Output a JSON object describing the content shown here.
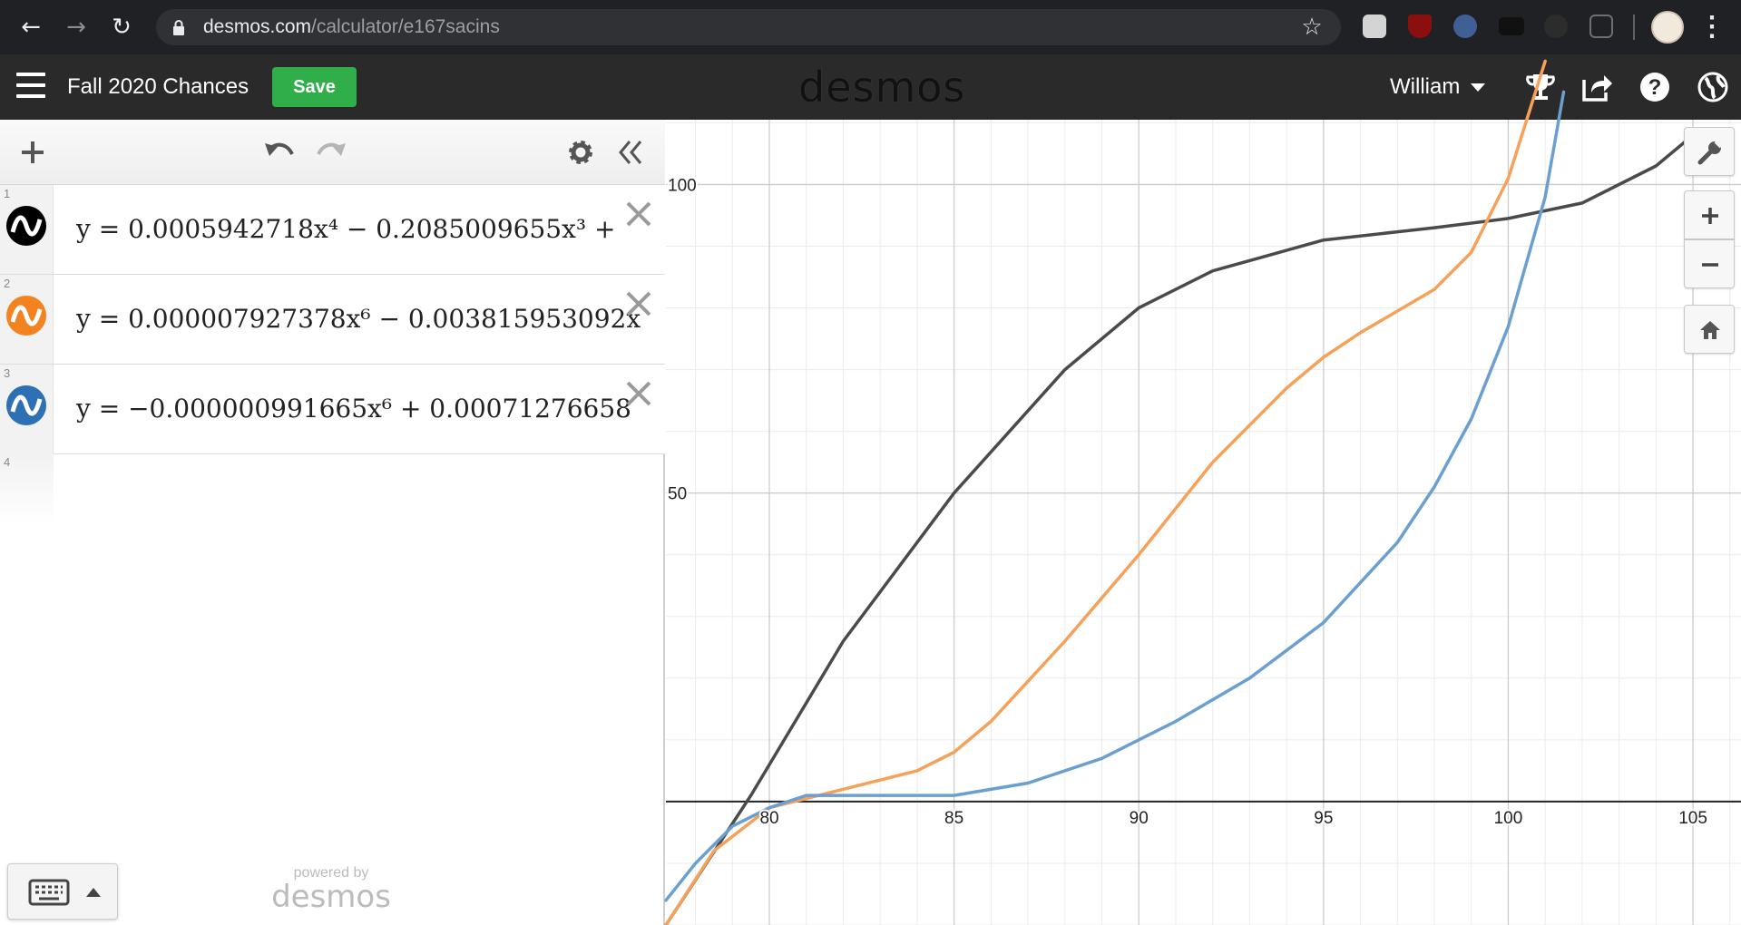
{
  "browser": {
    "url_host": "desmos.com",
    "url_path": "/calculator/e167sacins",
    "icons": [
      "back-icon",
      "forward-icon",
      "reload-icon",
      "lock-icon",
      "star-icon",
      "chrome-menu-icon"
    ]
  },
  "header": {
    "title": "Fall 2020 Chances",
    "save_label": "Save",
    "logo": "desmos",
    "user_name": "William",
    "icons": [
      "hamburger-icon",
      "trophy-icon",
      "share-icon",
      "help-icon",
      "globe-icon"
    ]
  },
  "expression_panel": {
    "toolbar_icons": [
      "add-icon",
      "undo-icon",
      "redo-icon",
      "settings-icon",
      "collapse-icon"
    ],
    "expressions": [
      {
        "index": "1",
        "color": "#000000",
        "latex": "y = 0.0005942718x⁴ − 0.2085009655x³ + "
      },
      {
        "index": "2",
        "color": "#f28320",
        "latex": "y = 0.000007927378x⁶ − 0.003815953092x"
      },
      {
        "index": "3",
        "color": "#2d70b3",
        "latex": "y = −0.000000991665x⁶ + 0.00071276658"
      }
    ],
    "empty_index": "4",
    "powered_by_label": "powered by",
    "powered_by_logo": "desmos"
  },
  "graph": {
    "x_ticks": [
      "80",
      "85",
      "90",
      "95",
      "100",
      "105"
    ],
    "y_ticks": [
      "50",
      "100"
    ],
    "x_range": [
      77.2,
      106.3
    ],
    "y_range": [
      -20.0,
      110.5
    ],
    "grid": "on",
    "controls": [
      "wrench-icon",
      "zoom-in-icon",
      "zoom-out-icon",
      "home-icon"
    ]
  },
  "chart_data": {
    "type": "line",
    "xlim": [
      77.2,
      106.3
    ],
    "ylim": [
      -20.0,
      110.5
    ],
    "x_ticks": [
      80,
      85,
      90,
      95,
      100,
      105
    ],
    "y_ticks": [
      50,
      100
    ],
    "series": [
      {
        "color": "#4a4a4a",
        "x": [
          77.2,
          79.5,
          82,
          85,
          88,
          90,
          92,
          95,
          98,
          100,
          102,
          104,
          105
        ],
        "y": [
          -20,
          1,
          26,
          50,
          70,
          80,
          86,
          91,
          93,
          94.5,
          97,
          103,
          108
        ]
      },
      {
        "color": "#f5a15a",
        "x": [
          77.2,
          78.5,
          80,
          82,
          84,
          85,
          86,
          88,
          90,
          92,
          94,
          95,
          96,
          98,
          99,
          100,
          101
        ],
        "y": [
          -20,
          -8,
          -1,
          2,
          5,
          8,
          13,
          26,
          40,
          55,
          67,
          72,
          76,
          83,
          89,
          101,
          120
        ]
      },
      {
        "color": "#6a9fcf",
        "x": [
          77.2,
          78,
          79,
          80,
          81,
          83,
          85,
          87,
          89,
          91,
          93,
          95,
          97,
          98,
          99,
          100,
          101,
          101.5
        ],
        "y": [
          -16,
          -10,
          -4,
          -1,
          1,
          1,
          1,
          3,
          7,
          13,
          20,
          29,
          42,
          51,
          62,
          77,
          98,
          115
        ]
      }
    ]
  }
}
